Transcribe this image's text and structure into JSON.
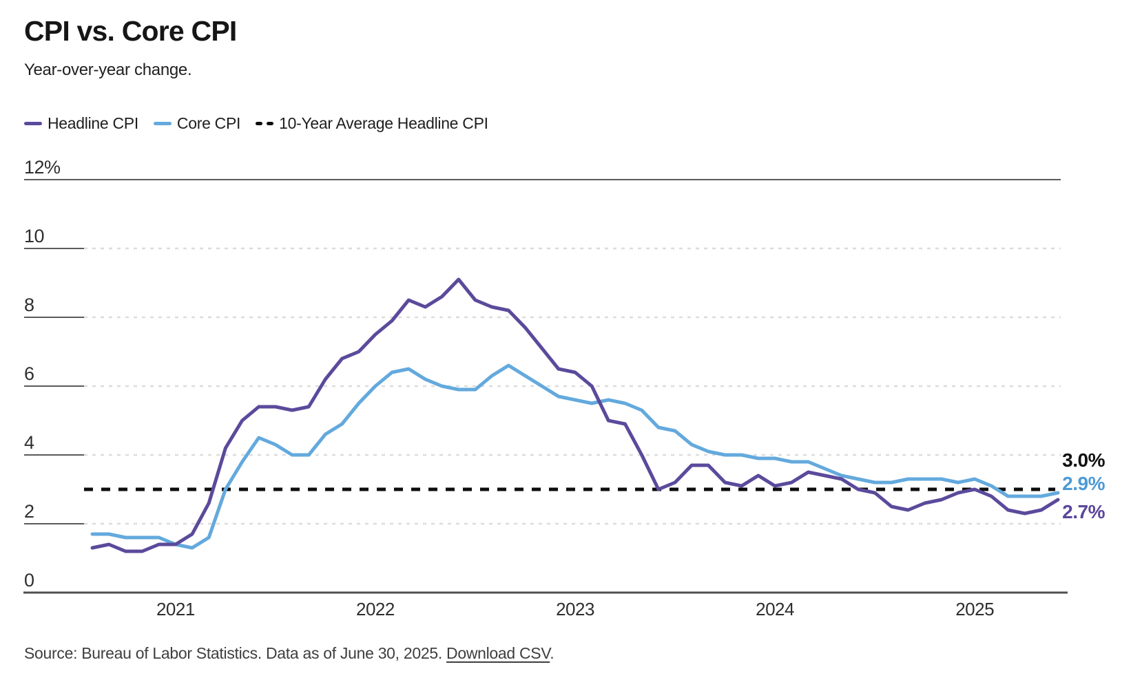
{
  "header": {
    "title": "CPI vs. Core CPI",
    "subtitle": "Year-over-year change."
  },
  "legend": {
    "items": [
      {
        "label": "Headline CPI",
        "color": "#5B4A9B",
        "style": "solid"
      },
      {
        "label": "Core CPI",
        "color": "#63A9DD",
        "style": "solid"
      },
      {
        "label": "10-Year Average Headline CPI",
        "color": "#111111",
        "style": "dashed"
      }
    ]
  },
  "footer": {
    "source_text": "Source: Bureau of Labor Statistics. Data as of June 30, 2025. ",
    "link_label": "Download CSV",
    "suffix": "."
  },
  "chart_data": {
    "type": "line",
    "title": "CPI vs. Core CPI",
    "subtitle": "Year-over-year change.",
    "x_start_month": "2020-08",
    "x_end_month": "2025-06",
    "x_frequency": "monthly",
    "ylim": [
      0,
      12
    ],
    "grid": "horizontal-dashed",
    "legend_position": "top-left",
    "y_ticks": [
      {
        "label": "12%",
        "value": 12
      },
      {
        "label": "10",
        "value": 10
      },
      {
        "label": "8",
        "value": 8
      },
      {
        "label": "6",
        "value": 6
      },
      {
        "label": "4",
        "value": 4
      },
      {
        "label": "2",
        "value": 2
      },
      {
        "label": "0",
        "value": 0
      }
    ],
    "x_ticks": [
      {
        "label": "2021",
        "month_index": 5
      },
      {
        "label": "2022",
        "month_index": 17
      },
      {
        "label": "2023",
        "month_index": 29
      },
      {
        "label": "2024",
        "month_index": 41
      },
      {
        "label": "2025",
        "month_index": 53
      }
    ],
    "series": [
      {
        "name": "Headline CPI",
        "color": "#5B4A9B",
        "values": [
          1.3,
          1.4,
          1.2,
          1.2,
          1.4,
          1.4,
          1.7,
          2.6,
          4.2,
          5.0,
          5.4,
          5.4,
          5.3,
          5.4,
          6.2,
          6.8,
          7.0,
          7.5,
          7.9,
          8.5,
          8.3,
          8.6,
          9.1,
          8.5,
          8.3,
          8.2,
          7.7,
          7.1,
          6.5,
          6.4,
          6.0,
          5.0,
          4.9,
          4.0,
          3.0,
          3.2,
          3.7,
          3.7,
          3.2,
          3.1,
          3.4,
          3.1,
          3.2,
          3.5,
          3.4,
          3.3,
          3.0,
          2.9,
          2.5,
          2.4,
          2.6,
          2.7,
          2.9,
          3.0,
          2.8,
          2.4,
          2.3,
          2.4,
          2.7
        ]
      },
      {
        "name": "Core CPI",
        "color": "#63A9DD",
        "values": [
          1.7,
          1.7,
          1.6,
          1.6,
          1.6,
          1.4,
          1.3,
          1.6,
          3.0,
          3.8,
          4.5,
          4.3,
          4.0,
          4.0,
          4.6,
          4.9,
          5.5,
          6.0,
          6.4,
          6.5,
          6.2,
          6.0,
          5.9,
          5.9,
          6.3,
          6.6,
          6.3,
          6.0,
          5.7,
          5.6,
          5.5,
          5.6,
          5.5,
          5.3,
          4.8,
          4.7,
          4.3,
          4.1,
          4.0,
          4.0,
          3.9,
          3.9,
          3.8,
          3.8,
          3.6,
          3.4,
          3.3,
          3.2,
          3.2,
          3.3,
          3.3,
          3.3,
          3.2,
          3.3,
          3.1,
          2.8,
          2.8,
          2.8,
          2.9
        ]
      }
    ],
    "reference_line": {
      "name": "10-Year Average Headline CPI",
      "value": 3.0,
      "color": "#0d0d0d",
      "style": "dashed"
    },
    "end_labels": [
      {
        "text": "3.0%",
        "color": "#111111",
        "refers_to": "10-Year Average Headline CPI"
      },
      {
        "text": "2.9%",
        "color": "#4C9AD5",
        "refers_to": "Core CPI"
      },
      {
        "text": "2.7%",
        "color": "#5B469B",
        "refers_to": "Headline CPI"
      }
    ]
  }
}
